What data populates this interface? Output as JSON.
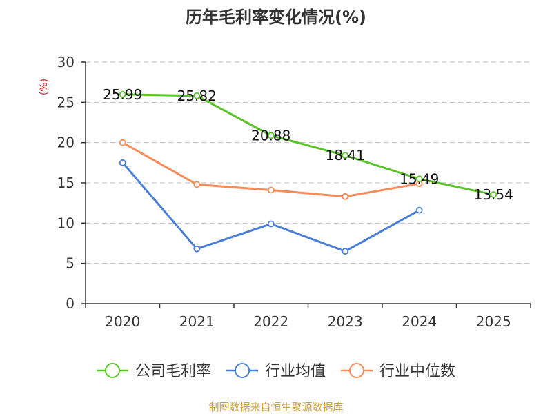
{
  "chart_data": {
    "type": "line",
    "title": "历年毛利率变化情况(%)",
    "ylabel": "(%)",
    "xlabel": "",
    "ylim": [
      0,
      30
    ],
    "yticks": [
      0,
      5,
      10,
      15,
      20,
      25,
      30
    ],
    "categories": [
      "2020",
      "2021",
      "2022",
      "2023",
      "2024",
      "2025"
    ],
    "grid": true,
    "legend_position": "bottom",
    "series": [
      {
        "name": "公司毛利率",
        "color": "#5cc22a",
        "values": [
          25.99,
          25.82,
          20.88,
          18.41,
          15.49,
          13.54
        ],
        "labels": [
          "25.99",
          "25.82",
          "20.88",
          "18.41",
          "15.49",
          "13.54"
        ]
      },
      {
        "name": "行业均值",
        "color": "#4a7fd8",
        "values": [
          17.5,
          6.8,
          9.9,
          6.5,
          11.6,
          null
        ]
      },
      {
        "name": "行业中位数",
        "color": "#f68c5a",
        "values": [
          20.0,
          14.8,
          14.1,
          13.3,
          14.9,
          null
        ]
      }
    ]
  },
  "footer": {
    "source": "制图数据来自恒生聚源数据库"
  }
}
